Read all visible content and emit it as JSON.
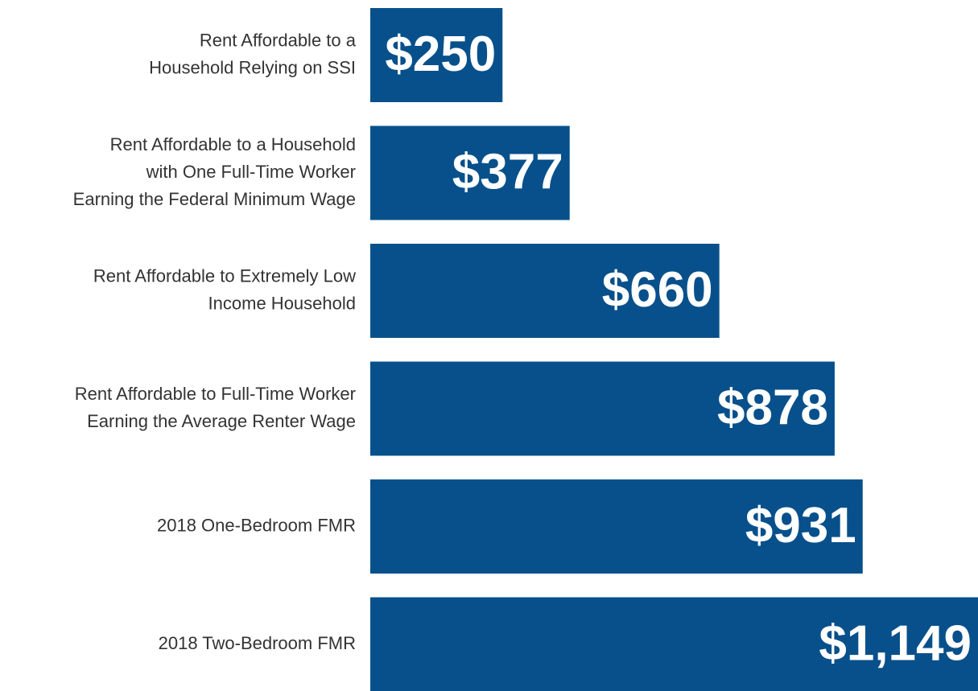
{
  "chart_data": {
    "type": "bar",
    "orientation": "horizontal",
    "color": "#07508b",
    "categories": [
      [
        "Rent Affordable to a",
        "Household Relying on SSI"
      ],
      [
        "Rent Affordable to a Household",
        "with One Full-Time Worker",
        "Earning the Federal Minimum Wage"
      ],
      [
        "Rent Affordable to Extremely Low",
        "Income Household"
      ],
      [
        "Rent Affordable to Full-Time Worker",
        "Earning the Average Renter Wage"
      ],
      [
        "2018 One-Bedroom FMR"
      ],
      [
        "2018 Two-Bedroom FMR"
      ]
    ],
    "values": [
      250,
      377,
      660,
      878,
      931,
      1149
    ],
    "value_labels": [
      "$250",
      "$377",
      "$660",
      "$878",
      "$931",
      "$1,149"
    ]
  }
}
